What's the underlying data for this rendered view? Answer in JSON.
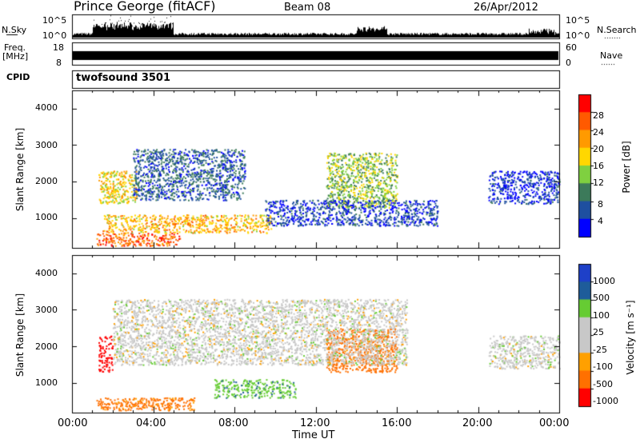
{
  "header": {
    "station": "Prince George (fitACF)",
    "beam": "Beam 08",
    "date": "26/Apr/2012"
  },
  "panels": {
    "nsky": {
      "label": "N.Sky",
      "ticks": [
        "10^5",
        "10^0"
      ],
      "right_label": "N.Search",
      "right_ticks": [
        "10^5",
        "10^0"
      ]
    },
    "freq": {
      "label_line1": "Freq.",
      "label_line2": "[MHz]",
      "ticks": [
        "18",
        "8"
      ],
      "right_label": "Nave",
      "right_ticks": [
        "60",
        "0"
      ]
    },
    "cpid": {
      "label": "CPID",
      "value": "twofsound 3501"
    }
  },
  "colors": {
    "power": [
      "#0000ff",
      "#1e4fa0",
      "#3c7a5a",
      "#7fd040",
      "#ffd700",
      "#ff9a00",
      "#ff5a00",
      "#ff0000"
    ],
    "velocity": [
      "#ff0000",
      "#ff7000",
      "#ffa000",
      "#c8c8c8",
      "#c8c8c8",
      "#66cc33",
      "#1e5c9a",
      "#1e40c8"
    ]
  },
  "chart_data": [
    {
      "type": "heatmap",
      "title": "Power",
      "xlabel": "",
      "ylabel": "Slant Range [km]",
      "xlim": [
        0,
        24
      ],
      "ylim": [
        180,
        4500
      ],
      "yticks": [
        "4000",
        "3000",
        "2000",
        "1000"
      ],
      "colorbar": {
        "label": "Power [dB]",
        "ticks": [
          "28",
          "24",
          "20",
          "16",
          "12",
          "8",
          "4"
        ],
        "range": [
          0,
          32
        ]
      },
      "regions": [
        {
          "range": [
            250,
            600
          ],
          "x": [
            1.2,
            5.3
          ],
          "value": 26
        },
        {
          "range": [
            600,
            1100
          ],
          "x": [
            1.5,
            9.8
          ],
          "value": 20
        },
        {
          "range": [
            1400,
            2300
          ],
          "x": [
            1.3,
            3.2
          ],
          "value": 18
        },
        {
          "range": [
            1300,
            2800
          ],
          "x": [
            12.5,
            16.0
          ],
          "value": 14
        },
        {
          "range": [
            1500,
            2900
          ],
          "x": [
            3.0,
            8.5
          ],
          "value": 7
        },
        {
          "range": [
            800,
            1500
          ],
          "x": [
            9.5,
            18.0
          ],
          "value": 5
        },
        {
          "range": [
            1400,
            2300
          ],
          "x": [
            20.5,
            24.0
          ],
          "value": 4
        }
      ]
    },
    {
      "type": "heatmap",
      "title": "Velocity",
      "xlabel": "Time UT",
      "ylabel": "Slant Range [km]",
      "xlim": [
        0,
        24
      ],
      "ylim": [
        180,
        4500
      ],
      "xticks": [
        "00:00",
        "04:00",
        "08:00",
        "12:00",
        "16:00",
        "20:00",
        "00:00"
      ],
      "yticks": [
        "4000",
        "3000",
        "2000",
        "1000"
      ],
      "colorbar": {
        "label": "Velocity [m s⁻¹]",
        "ticks": [
          "1000",
          "500",
          "100",
          "25",
          "-25",
          "-100",
          "-500",
          "-1000"
        ],
        "range": [
          -1000,
          1000
        ]
      },
      "regions": [
        {
          "range": [
            250,
            600
          ],
          "x": [
            1.2,
            6.0
          ],
          "value": -120
        },
        {
          "range": [
            1300,
            2300
          ],
          "x": [
            1.3,
            2.0
          ],
          "value": -700
        },
        {
          "range": [
            600,
            1100
          ],
          "x": [
            7.0,
            11.0
          ],
          "value": 80
        },
        {
          "range": [
            1300,
            2500
          ],
          "x": [
            12.5,
            16.0
          ],
          "value": -200
        },
        {
          "range": [
            1500,
            3300
          ],
          "x": [
            2.0,
            16.5
          ],
          "value": 0
        },
        {
          "range": [
            1400,
            2300
          ],
          "x": [
            20.5,
            24.0
          ],
          "value": 0
        }
      ]
    }
  ]
}
